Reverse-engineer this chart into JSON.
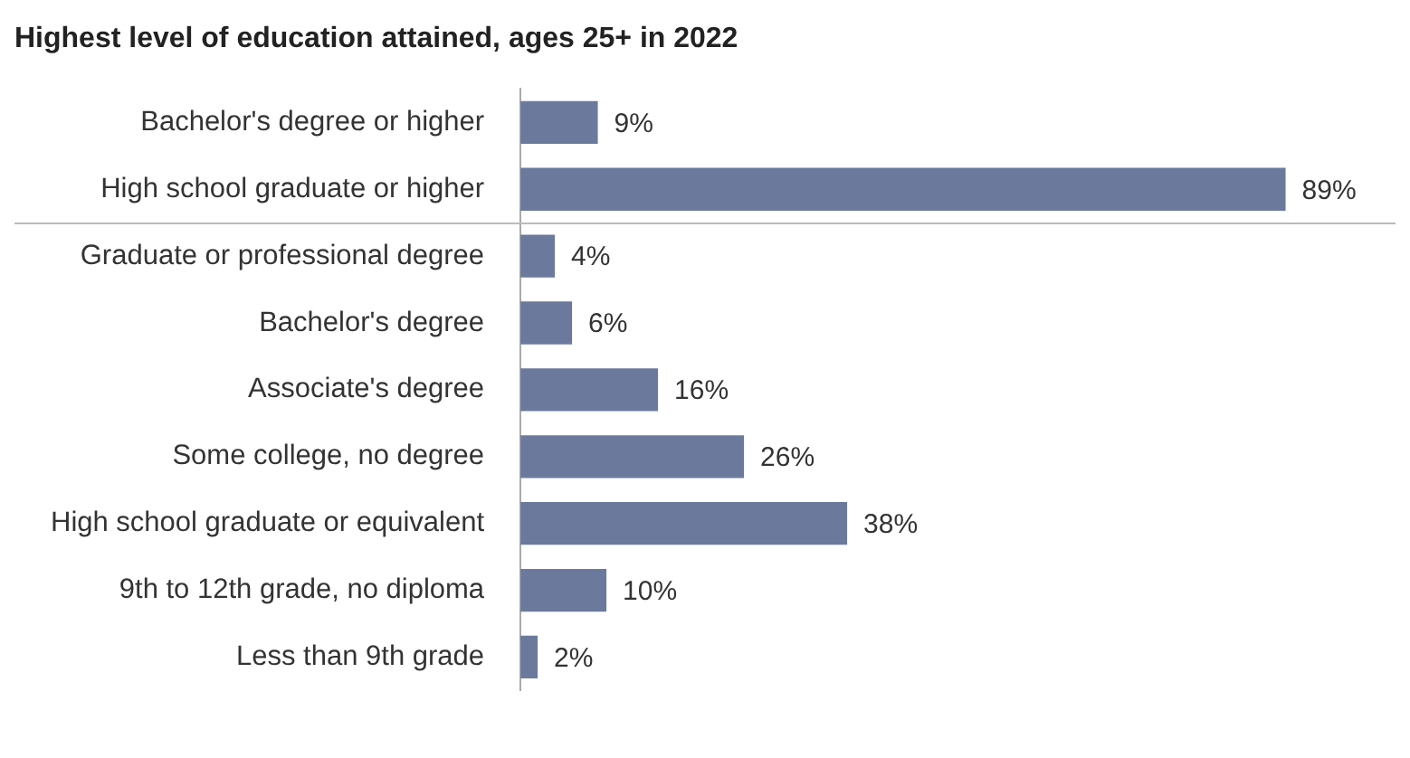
{
  "chart_data": {
    "type": "bar",
    "orientation": "horizontal",
    "title": "Highest level of education attained, ages 25+ in 2022",
    "categories": [
      "Bachelor's degree or higher",
      "High school graduate or higher",
      "Graduate or professional degree",
      "Bachelor's degree",
      "Associate's degree",
      "Some college, no degree",
      "High school graduate or equivalent",
      "9th to 12th grade, no diploma",
      "Less than 9th grade"
    ],
    "values": [
      9,
      89,
      4,
      6,
      16,
      26,
      38,
      10,
      2
    ],
    "value_labels": [
      "9%",
      "89%",
      "4%",
      "6%",
      "16%",
      "26%",
      "38%",
      "10%",
      "2%"
    ],
    "color": "#6b7a9c",
    "grid": false,
    "legend": false
  }
}
